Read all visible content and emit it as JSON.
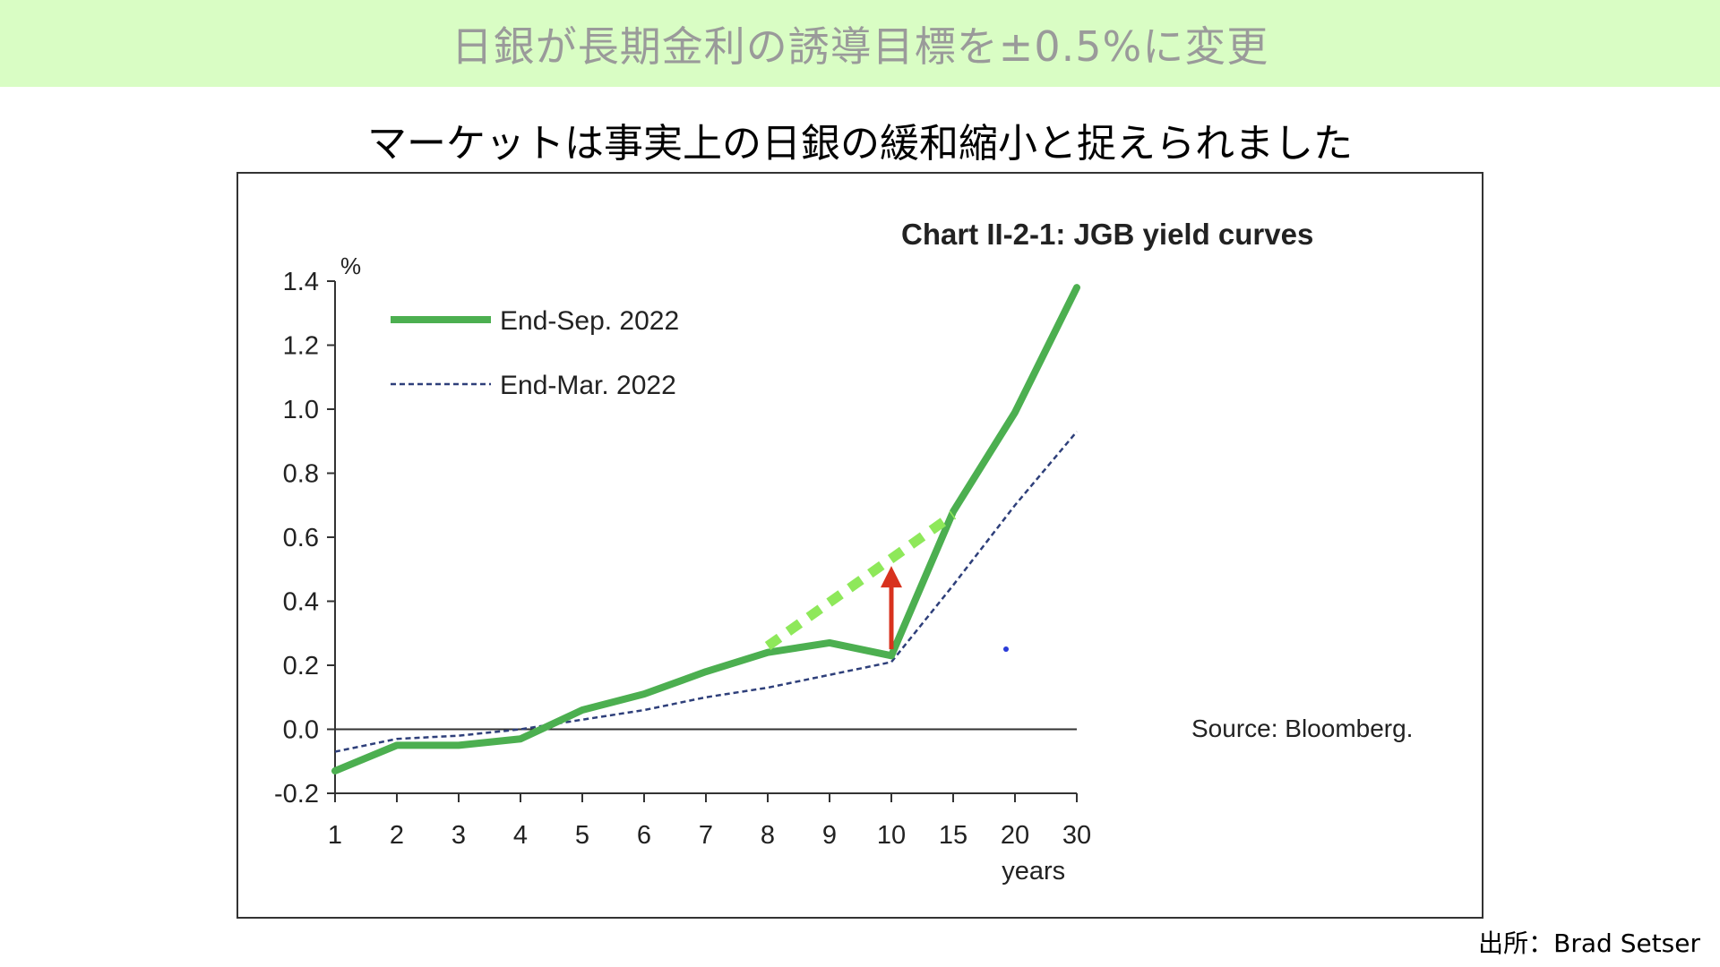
{
  "banner": {
    "title": "日銀が長期金利の誘導目標を±0.5%に変更"
  },
  "subtitle": "マーケットは事実上の日銀の緩和縮小と捉えられました",
  "source": "出所：Brad Setser",
  "colors": {
    "banner_bg": "#d9fdc4",
    "sep_series": "#4caf50",
    "mar_series": "#2e3f7a",
    "highlight_dash": "#8ee85a",
    "arrow": "#d8321e"
  },
  "chart_data": {
    "type": "line",
    "title": "Chart II-2-1: JGB yield curves",
    "ylabel": "%",
    "xlabel": "years",
    "note": "Source: Bloomberg.",
    "categories": [
      "1",
      "2",
      "3",
      "4",
      "5",
      "6",
      "7",
      "8",
      "9",
      "10",
      "15",
      "20",
      "30"
    ],
    "yticks": [
      "1.4",
      "1.2",
      "1.0",
      "0.8",
      "0.6",
      "0.4",
      "0.2",
      "0.0",
      "-0.2"
    ],
    "ylim": [
      -0.2,
      1.4
    ],
    "legend_position": "top-left",
    "series": [
      {
        "name": "End-Sep. 2022",
        "style": "solid",
        "values": [
          -0.13,
          -0.05,
          -0.05,
          -0.03,
          0.06,
          0.11,
          0.18,
          0.24,
          0.27,
          0.23,
          0.68,
          0.99,
          1.38
        ]
      },
      {
        "name": "End-Mar. 2022",
        "style": "dashed",
        "values": [
          -0.07,
          -0.03,
          -0.02,
          0.0,
          0.03,
          0.06,
          0.1,
          0.13,
          0.17,
          0.21,
          0.45,
          0.7,
          0.93
        ]
      }
    ],
    "annotations": {
      "highlight_dash": {
        "from_x": 8,
        "from_y": 0.26,
        "to_x": 15,
        "to_y": 0.67
      },
      "arrow": {
        "x": 10,
        "from_y": 0.25,
        "to_y": 0.51
      }
    }
  }
}
